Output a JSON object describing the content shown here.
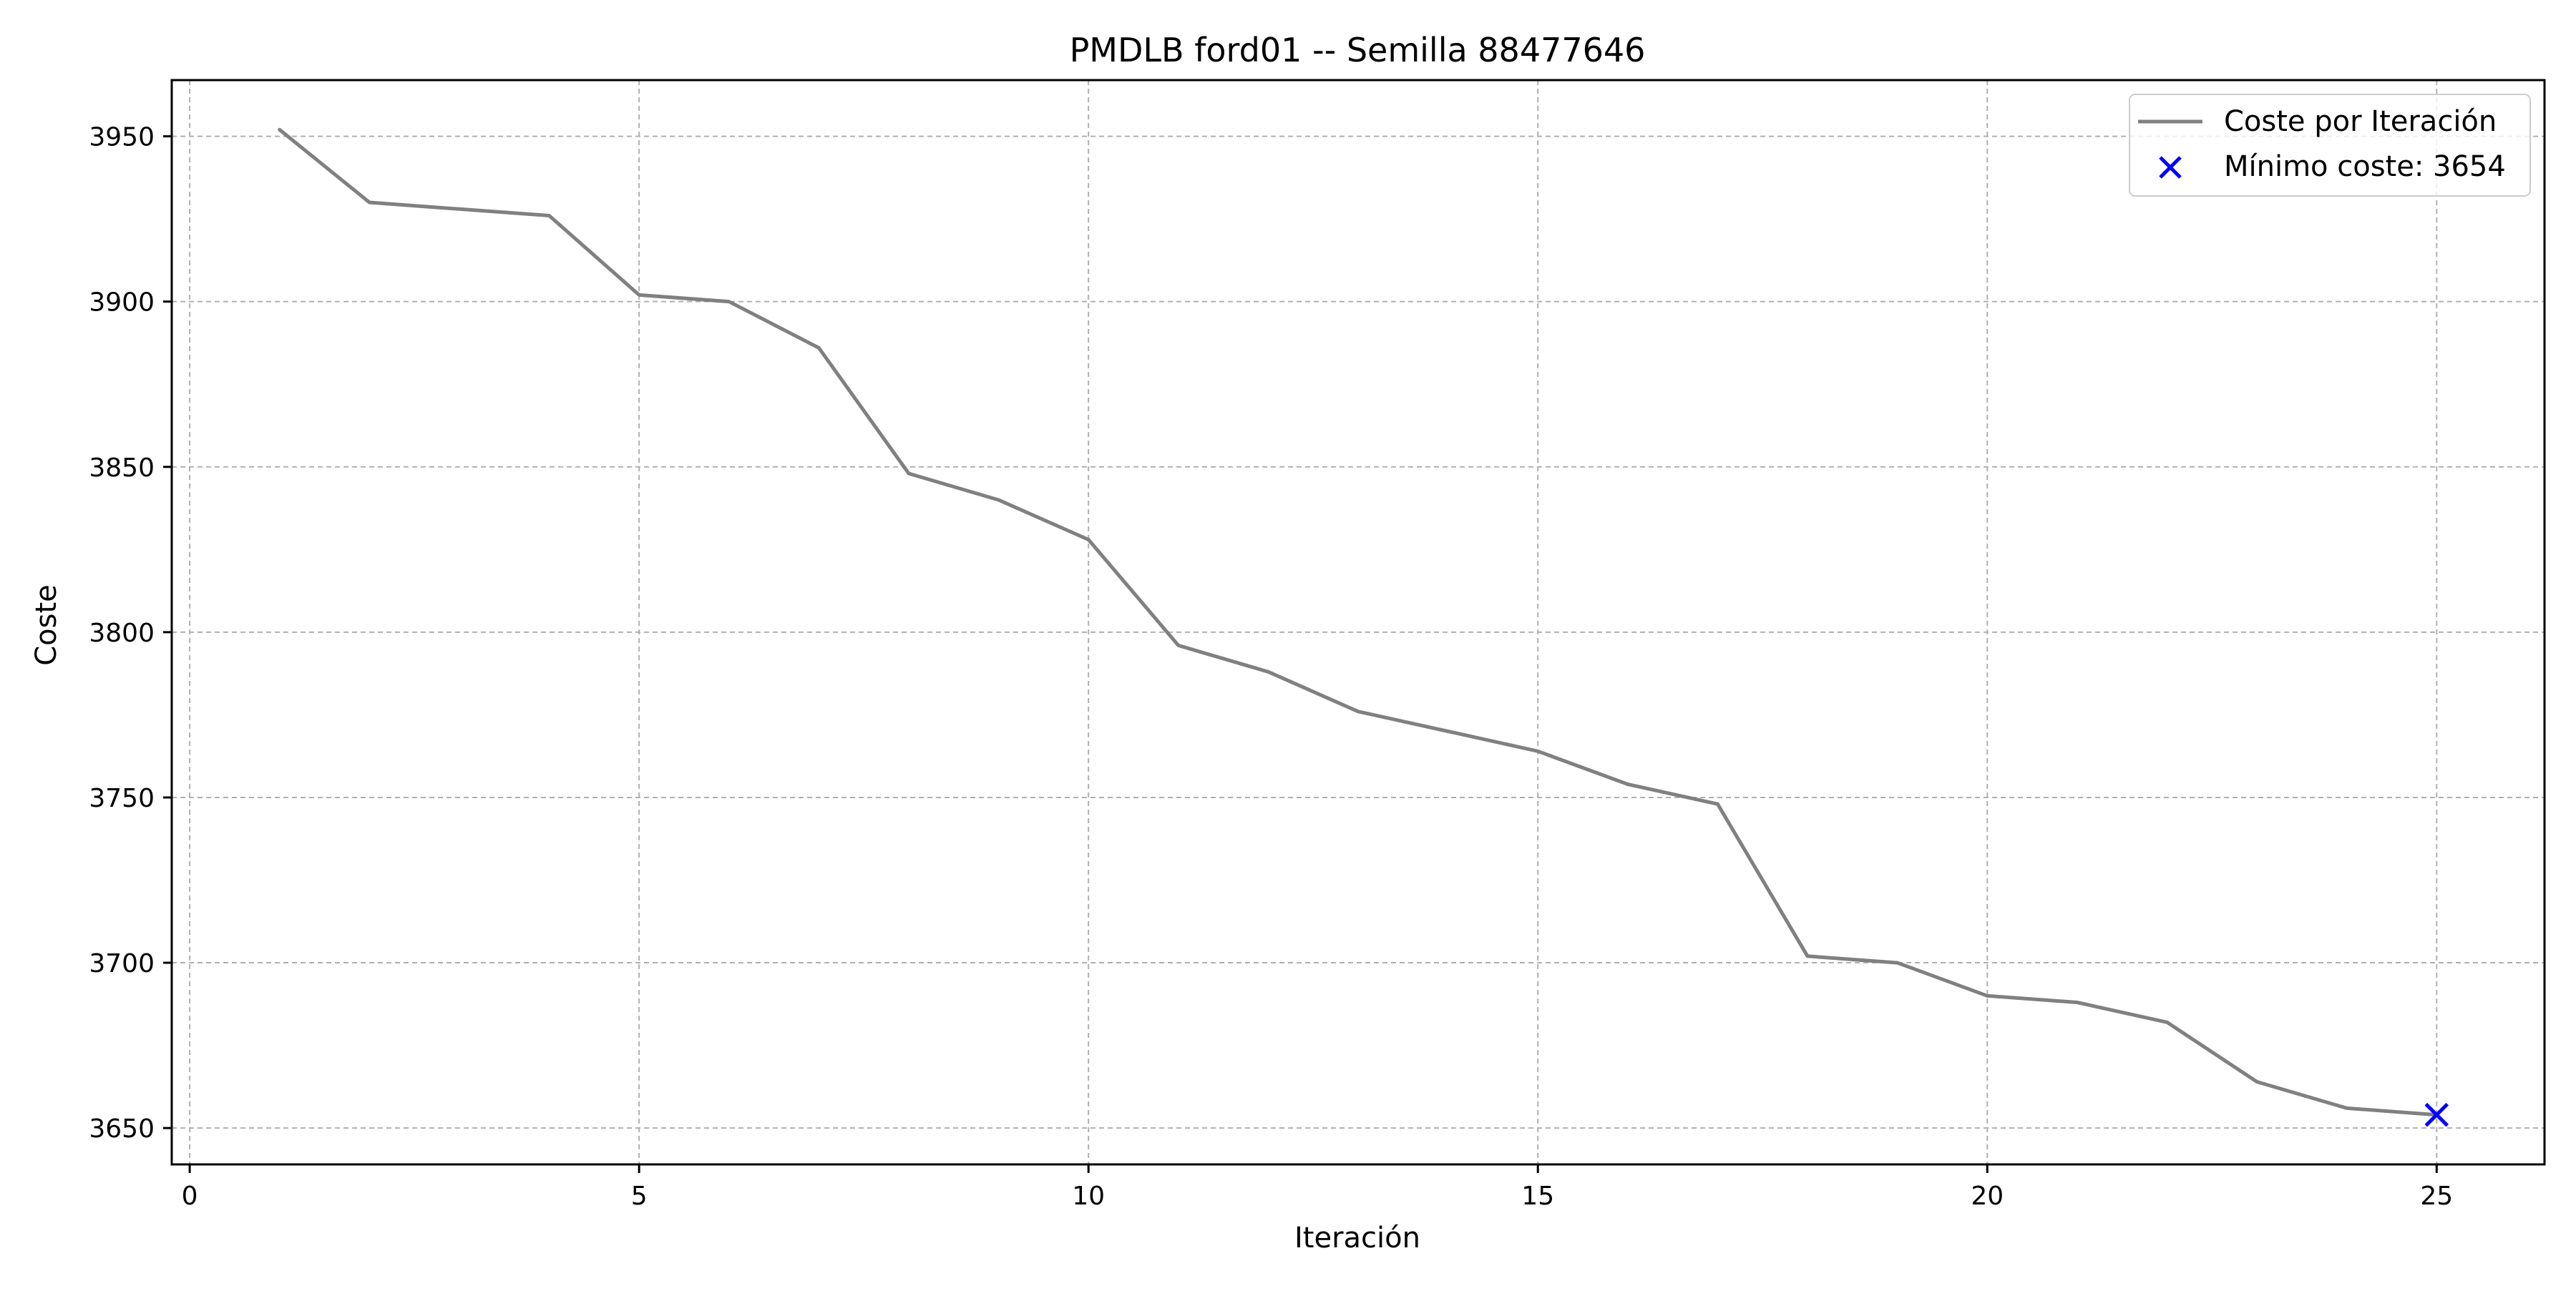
{
  "chart_data": {
    "type": "line",
    "title": "PMDLB ford01 -- Semilla 88477646",
    "xlabel": "Iteración",
    "ylabel": "Coste",
    "xlim": [
      -0.2,
      26.2
    ],
    "ylim": [
      3639,
      3967
    ],
    "x_ticks": [
      0,
      5,
      10,
      15,
      20,
      25
    ],
    "y_ticks": [
      3650,
      3700,
      3750,
      3800,
      3850,
      3900,
      3950
    ],
    "grid": true,
    "legend_position": "top-right",
    "series": [
      {
        "name": "Coste por Iteración",
        "color": "#808080",
        "x": [
          1,
          2,
          3,
          4,
          5,
          6,
          7,
          8,
          9,
          10,
          11,
          12,
          13,
          14,
          15,
          16,
          17,
          18,
          19,
          20,
          21,
          22,
          23,
          24,
          25
        ],
        "y": [
          3952,
          3930,
          3928,
          3926,
          3902,
          3900,
          3886,
          3848,
          3840,
          3828,
          3796,
          3788,
          3776,
          3770,
          3764,
          3754,
          3748,
          3702,
          3700,
          3690,
          3688,
          3682,
          3664,
          3656,
          3654
        ]
      }
    ],
    "min_marker": {
      "name": "Mínimo coste: 3654",
      "x": 25,
      "y": 3654,
      "color": "#0000ff",
      "marker": "x"
    }
  }
}
